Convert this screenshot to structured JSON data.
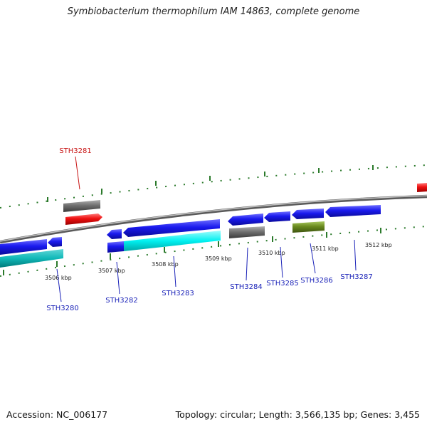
{
  "title": "Symbiobacterium thermophilum IAM 14863, complete genome",
  "footer": {
    "accession": "Accession: NC_006177",
    "summary": "Topology: circular; Length: 3,566,135 bp; Genes: 3,455"
  },
  "colors": {
    "forward_gene": "#1a1aee",
    "reverse_gene": "#1a1aee",
    "rrna": "#00e0e0",
    "rrna_dark": "#00b4b4",
    "trna": "#e81010",
    "pseudo": "#787878",
    "misc": "#6a8a1e",
    "label_blue": "#1a22b8",
    "label_red": "#c81414",
    "tick": "#2b7a2b",
    "backbone": "#7a7a7a"
  },
  "kbp_labels": [
    "3506 kbp",
    "3507 kbp",
    "3508 kbp",
    "3509 kbp",
    "3510 kbp",
    "3511 kbp",
    "3512 kbp"
  ],
  "gene_labels": [
    {
      "text": "STH3280",
      "strand": "reverse"
    },
    {
      "text": "STH3281",
      "strand": "forward"
    },
    {
      "text": "STH3282",
      "strand": "reverse"
    },
    {
      "text": "STH3283",
      "strand": "reverse"
    },
    {
      "text": "STH3284",
      "strand": "reverse"
    },
    {
      "text": "STH3285",
      "strand": "reverse"
    },
    {
      "text": "STH3286",
      "strand": "reverse"
    },
    {
      "text": "STH3287",
      "strand": "reverse"
    }
  ]
}
